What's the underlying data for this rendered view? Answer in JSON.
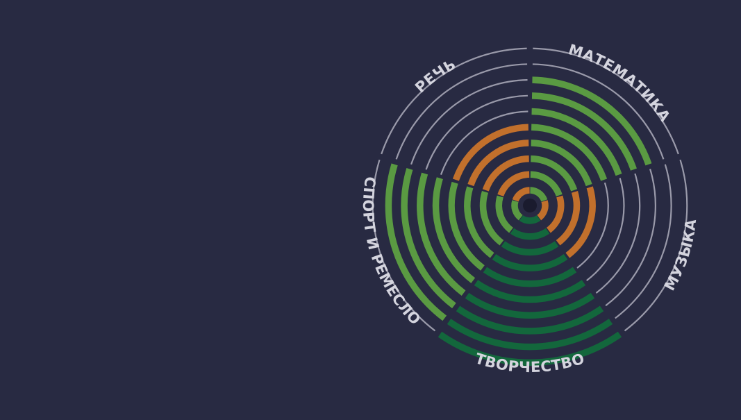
{
  "chart_data": {
    "type": "radial-bar",
    "max_rings": 10,
    "categories": [
      "МАТЕМАТИКА",
      "МУЗЫКА",
      "ТВОРЧЕСТВО",
      "СПОРТ И РЕМЕСЛО",
      "РЕЧЬ"
    ],
    "values": [
      8,
      4,
      10,
      9,
      5
    ],
    "colors": [
      "#5a9a42",
      "#c2702c",
      "#13673c",
      "#5a9a42",
      "#c2702c"
    ],
    "empty_ring_color": "#9a9aaa",
    "background": "#282a42"
  }
}
